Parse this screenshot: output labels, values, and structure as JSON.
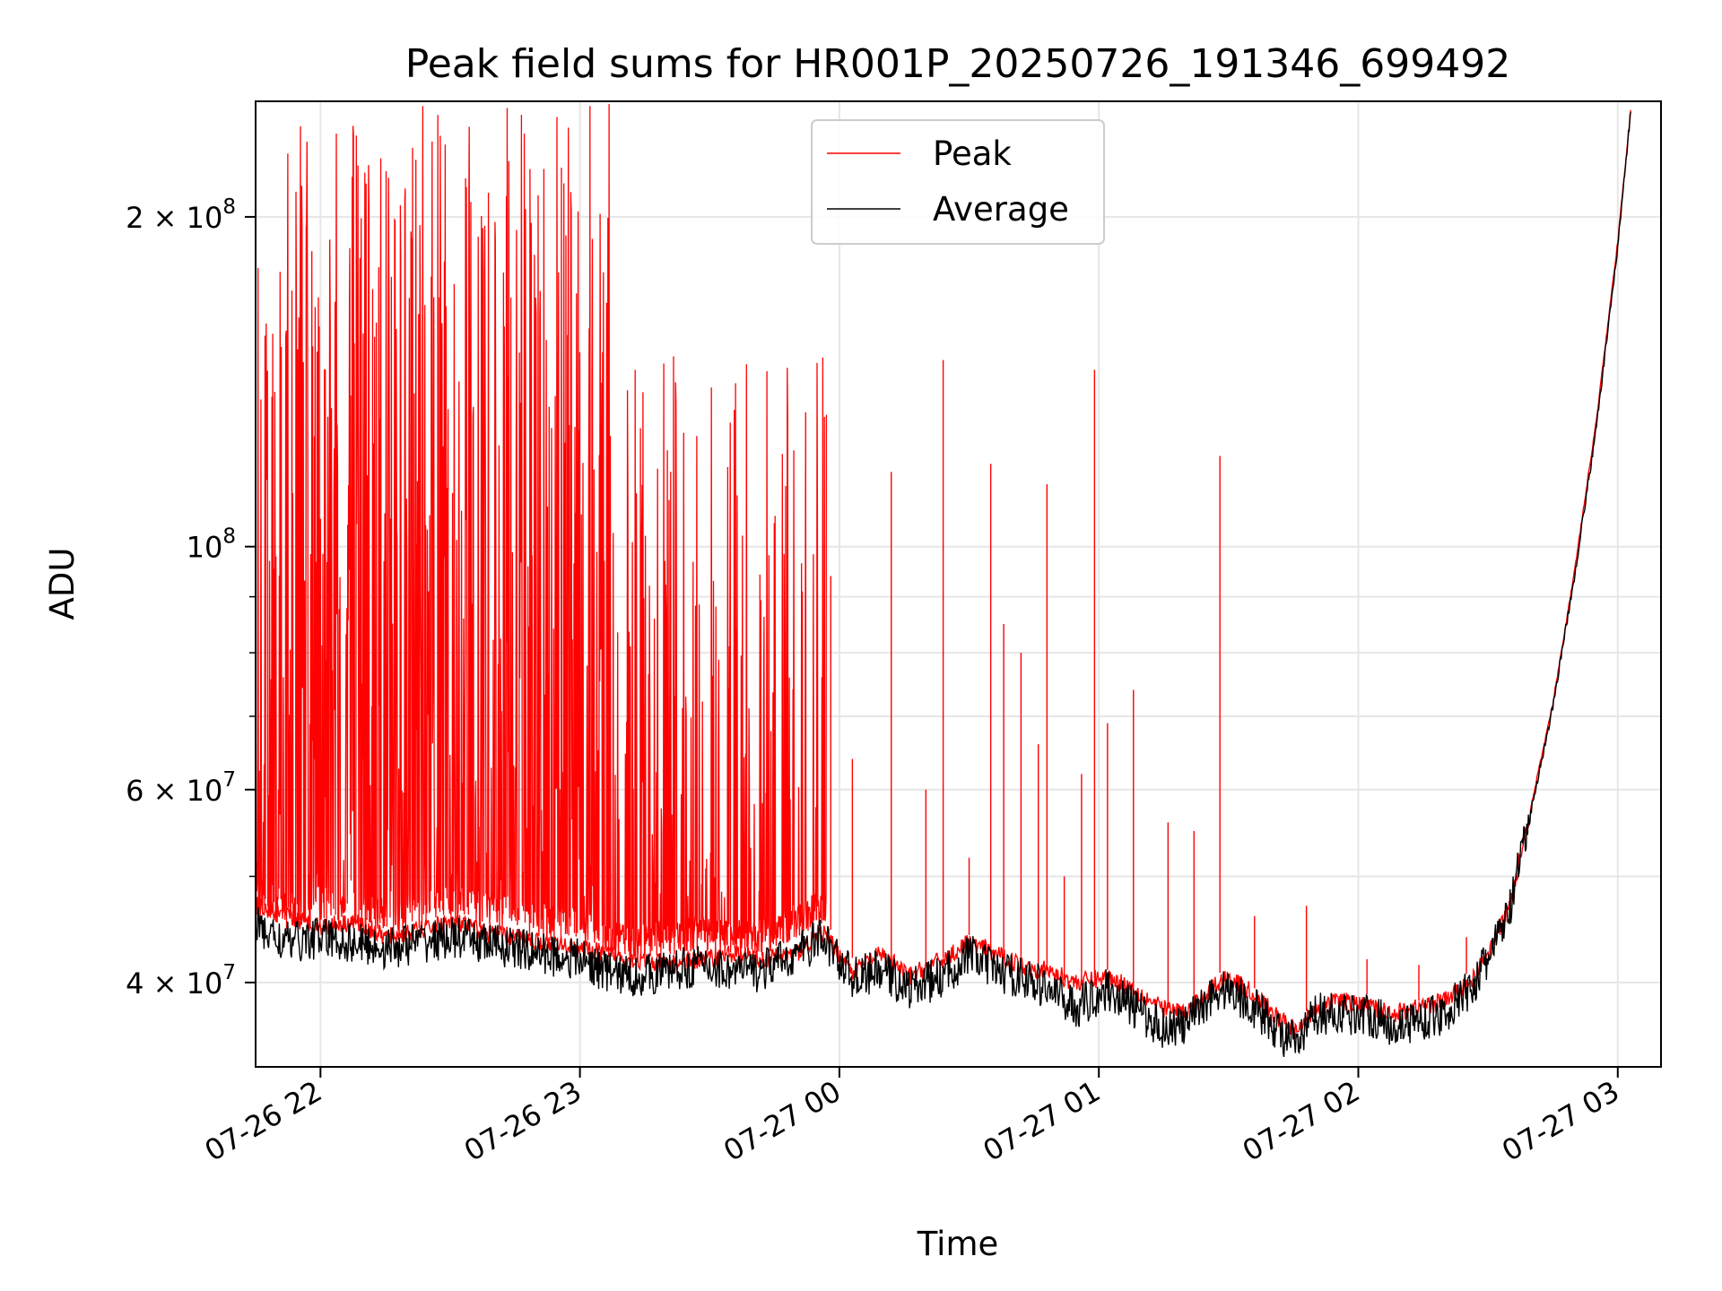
{
  "chart_data": {
    "type": "line",
    "title": "Peak field sums for HR001P_20250726_191346_699492",
    "xlabel": "Time",
    "ylabel": "ADU",
    "yscale": "log",
    "grid": true,
    "legend_position": "top-center",
    "xlim": [
      "2025-07-26 21:45",
      "2025-07-27 03:10"
    ],
    "ylim": [
      33500000,
      255000000
    ],
    "x_ticks": [
      {
        "value": "2025-07-26 22:00",
        "label": "07-26 22"
      },
      {
        "value": "2025-07-26 23:00",
        "label": "07-26 23"
      },
      {
        "value": "2025-07-27 00:00",
        "label": "07-27 00"
      },
      {
        "value": "2025-07-27 01:00",
        "label": "07-27 01"
      },
      {
        "value": "2025-07-27 02:00",
        "label": "07-27 02"
      },
      {
        "value": "2025-07-27 03:00",
        "label": "07-27 03"
      }
    ],
    "y_major_ticks": [
      {
        "value": 40000000,
        "mantissa": "4",
        "base": "10",
        "exp": "7"
      },
      {
        "value": 60000000,
        "mantissa": "6",
        "base": "10",
        "exp": "7"
      },
      {
        "value": 100000000,
        "mantissa": "",
        "base": "10",
        "exp": "8"
      },
      {
        "value": 200000000,
        "mantissa": "2",
        "base": "10",
        "exp": "8"
      }
    ],
    "y_minor_ticks": [
      50000000,
      70000000,
      80000000,
      90000000
    ],
    "times_sign": "×",
    "series": [
      {
        "name": "Peak",
        "color": "#ff0000",
        "x": [
          "2025-07-26 21:45",
          "2025-07-26 21:52",
          "2025-07-26 22:00",
          "2025-07-26 22:08",
          "2025-07-26 22:15",
          "2025-07-26 22:22",
          "2025-07-26 22:30",
          "2025-07-26 22:38",
          "2025-07-26 22:45",
          "2025-07-26 22:52",
          "2025-07-26 23:00",
          "2025-07-26 23:06",
          "2025-07-26 23:12",
          "2025-07-26 23:20",
          "2025-07-26 23:28",
          "2025-07-26 23:35",
          "2025-07-26 23:42",
          "2025-07-26 23:50",
          "2025-07-26 23:56",
          "2025-07-27 00:03",
          "2025-07-27 00:10",
          "2025-07-27 00:16",
          "2025-07-27 00:24",
          "2025-07-27 00:30",
          "2025-07-27 00:36",
          "2025-07-27 00:42",
          "2025-07-27 00:48",
          "2025-07-27 00:55",
          "2025-07-27 01:02",
          "2025-07-27 01:08",
          "2025-07-27 01:14",
          "2025-07-27 01:20",
          "2025-07-27 01:26",
          "2025-07-27 01:30",
          "2025-07-27 01:36",
          "2025-07-27 01:42",
          "2025-07-27 01:46",
          "2025-07-27 01:50",
          "2025-07-27 01:56",
          "2025-07-27 02:02",
          "2025-07-27 02:08",
          "2025-07-27 02:14",
          "2025-07-27 02:20",
          "2025-07-27 02:26",
          "2025-07-27 02:30",
          "2025-07-27 02:35",
          "2025-07-27 02:40",
          "2025-07-27 02:45",
          "2025-07-27 02:50",
          "2025-07-27 02:55",
          "2025-07-27 03:00",
          "2025-07-27 03:03"
        ],
        "values": [
          47000000,
          46000000,
          45000000,
          45500000,
          44000000,
          44500000,
          45500000,
          44500000,
          44000000,
          43500000,
          43000000,
          42500000,
          42000000,
          41500000,
          42000000,
          42500000,
          42000000,
          42500000,
          44500000,
          41000000,
          42500000,
          40500000,
          42000000,
          43500000,
          42500000,
          41500000,
          41000000,
          40000000,
          40500000,
          39500000,
          38000000,
          37500000,
          39500000,
          40500000,
          39000000,
          37000000,
          36000000,
          38000000,
          38500000,
          38000000,
          37500000,
          38000000,
          38500000,
          40000000,
          42500000,
          47000000,
          58000000,
          72000000,
          95000000,
          130000000,
          190000000,
          250000000
        ]
      },
      {
        "name": "Average",
        "color": "#000000",
        "x": [
          "2025-07-26 21:45",
          "2025-07-26 21:52",
          "2025-07-26 22:00",
          "2025-07-26 22:08",
          "2025-07-26 22:15",
          "2025-07-26 22:22",
          "2025-07-26 22:30",
          "2025-07-26 22:38",
          "2025-07-26 22:45",
          "2025-07-26 22:52",
          "2025-07-26 23:00",
          "2025-07-26 23:06",
          "2025-07-26 23:12",
          "2025-07-26 23:20",
          "2025-07-26 23:28",
          "2025-07-26 23:35",
          "2025-07-26 23:42",
          "2025-07-26 23:50",
          "2025-07-26 23:56",
          "2025-07-27 00:03",
          "2025-07-27 00:10",
          "2025-07-27 00:16",
          "2025-07-27 00:24",
          "2025-07-27 00:30",
          "2025-07-27 00:36",
          "2025-07-27 00:42",
          "2025-07-27 00:48",
          "2025-07-27 00:55",
          "2025-07-27 01:02",
          "2025-07-27 01:08",
          "2025-07-27 01:14",
          "2025-07-27 01:20",
          "2025-07-27 01:26",
          "2025-07-27 01:30",
          "2025-07-27 01:36",
          "2025-07-27 01:42",
          "2025-07-27 01:46",
          "2025-07-27 01:50",
          "2025-07-27 01:56",
          "2025-07-27 02:02",
          "2025-07-27 02:08",
          "2025-07-27 02:14",
          "2025-07-27 02:20",
          "2025-07-27 02:26",
          "2025-07-27 02:30",
          "2025-07-27 02:35",
          "2025-07-27 02:40",
          "2025-07-27 02:45",
          "2025-07-27 02:50",
          "2025-07-27 02:55",
          "2025-07-27 03:00",
          "2025-07-27 03:03"
        ],
        "values": [
          45000000,
          43500000,
          44000000,
          43500000,
          43000000,
          43500000,
          44000000,
          43500000,
          43000000,
          42500000,
          42000000,
          41000000,
          40500000,
          41000000,
          41500000,
          41000000,
          41000000,
          42500000,
          44000000,
          40500000,
          41000000,
          39500000,
          40500000,
          42500000,
          41000000,
          40500000,
          39500000,
          38000000,
          39500000,
          38000000,
          36500000,
          36500000,
          39000000,
          39500000,
          38000000,
          36000000,
          35000000,
          37500000,
          37500000,
          37500000,
          36500000,
          37000000,
          37500000,
          39500000,
          42000000,
          46500000,
          57500000,
          71500000,
          94000000,
          128000000,
          188000000,
          250000000
        ]
      }
    ]
  },
  "spikes": {
    "color": "#ff0000",
    "items": [
      {
        "x": "2025-07-26 23:58",
        "value": 94000000
      },
      {
        "x": "2025-07-27 00:03",
        "value": 64000000
      },
      {
        "x": "2025-07-27 00:12",
        "value": 117000000
      },
      {
        "x": "2025-07-27 00:20",
        "value": 60000000
      },
      {
        "x": "2025-07-27 00:24",
        "value": 148000000
      },
      {
        "x": "2025-07-27 00:30",
        "value": 52000000
      },
      {
        "x": "2025-07-27 00:35",
        "value": 119000000
      },
      {
        "x": "2025-07-27 00:38",
        "value": 85000000
      },
      {
        "x": "2025-07-27 00:42",
        "value": 80000000
      },
      {
        "x": "2025-07-27 00:46",
        "value": 66000000
      },
      {
        "x": "2025-07-27 00:48",
        "value": 114000000
      },
      {
        "x": "2025-07-27 00:52",
        "value": 50000000
      },
      {
        "x": "2025-07-27 00:56",
        "value": 62000000
      },
      {
        "x": "2025-07-27 00:59",
        "value": 145000000
      },
      {
        "x": "2025-07-27 01:02",
        "value": 69000000
      },
      {
        "x": "2025-07-27 01:08",
        "value": 74000000
      },
      {
        "x": "2025-07-27 01:16",
        "value": 56000000
      },
      {
        "x": "2025-07-27 01:22",
        "value": 55000000
      },
      {
        "x": "2025-07-27 01:28",
        "value": 121000000
      },
      {
        "x": "2025-07-27 01:36",
        "value": 46000000
      },
      {
        "x": "2025-07-27 01:48",
        "value": 47000000
      },
      {
        "x": "2025-07-27 02:02",
        "value": 42000000
      },
      {
        "x": "2025-07-27 02:14",
        "value": 41500000
      },
      {
        "x": "2025-07-27 02:25",
        "value": 44000000
      }
    ]
  },
  "noise_region": {
    "x_start": "2025-07-26 21:45",
    "x_end": "2025-07-26 23:57",
    "dense_until": "2025-07-26 23:07",
    "min": 44000000,
    "max": 255000000
  }
}
